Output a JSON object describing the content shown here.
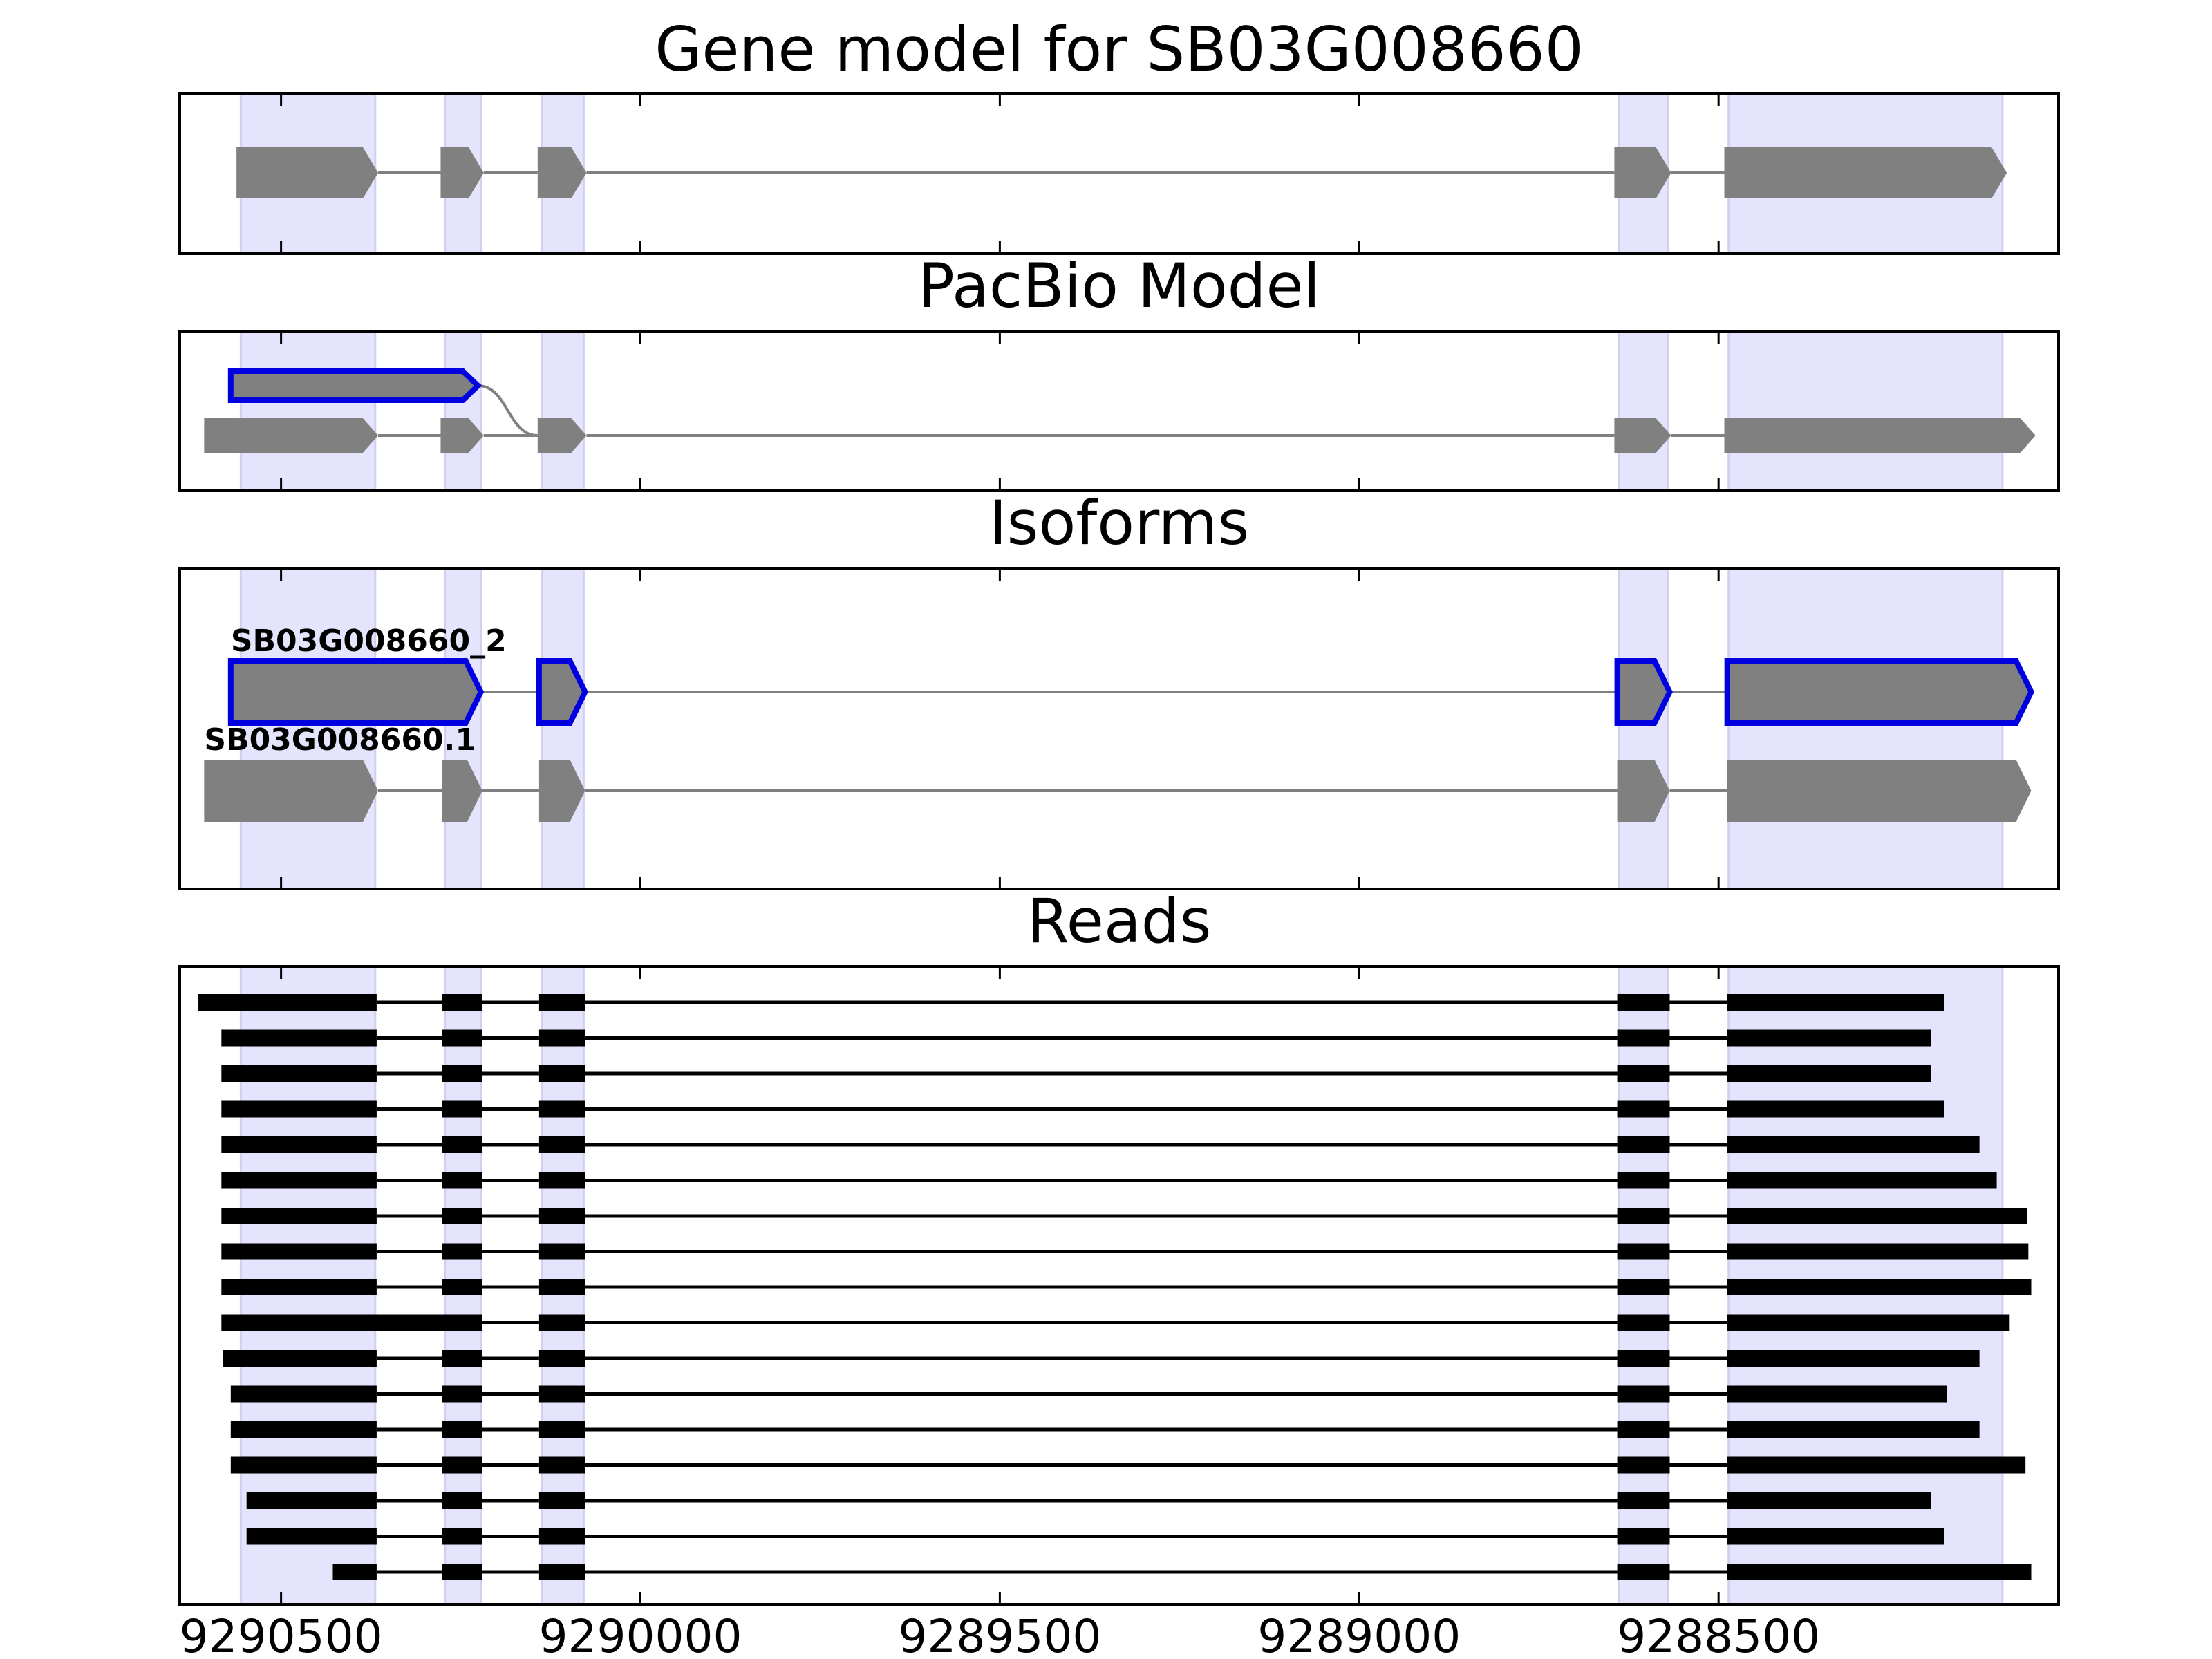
{
  "chart_data": {
    "type": "gene_model",
    "xlim": [
      9290641,
      9288027
    ],
    "xticks": [
      9290500,
      9290000,
      9289500,
      9289000,
      9288500
    ],
    "highlight_regions": [
      [
        9290556,
        9290369
      ],
      [
        9290272,
        9290222
      ],
      [
        9290137,
        9290079
      ],
      [
        9288639,
        9288570
      ],
      [
        9288486,
        9288105
      ]
    ],
    "highlight_color": "#e4e4fc",
    "panels": [
      {
        "title": "Gene model for SB03G008660",
        "tracks": [
          {
            "color": "#808080",
            "exons": [
              [
                9290562,
                9290365
              ],
              [
                9290278,
                9290218
              ],
              [
                9290143,
                9290075
              ],
              [
                9288645,
                9288566
              ],
              [
                9288492,
                9288099
              ]
            ]
          }
        ]
      },
      {
        "title": "PacBio Model",
        "tracks": [
          {
            "color": "#808080",
            "edge_color": "#0000e0",
            "exons": [
              [
                9290570,
                9290226
              ]
            ]
          },
          {
            "color": "#808080",
            "exons": [
              [
                9290607,
                9290365
              ],
              [
                9290278,
                9290218
              ],
              [
                9290143,
                9290075
              ],
              [
                9288645,
                9288566
              ],
              [
                9288492,
                9288059
              ]
            ]
          }
        ]
      },
      {
        "title": "Isoforms",
        "tracks": [
          {
            "name": "SB03G008660_2",
            "color": "#808080",
            "edge_color": "#0000e0",
            "exons": [
              [
                9290570,
                9290222
              ],
              [
                9290141,
                9290077
              ],
              [
                9288641,
                9288568
              ],
              [
                9288488,
                9288065
              ]
            ]
          },
          {
            "name": "SB03G008660.1",
            "color": "#808080",
            "exons": [
              [
                9290607,
                9290365
              ],
              [
                9290276,
                9290220
              ],
              [
                9290141,
                9290077
              ],
              [
                9288641,
                9288568
              ],
              [
                9288488,
                9288065
              ]
            ]
          }
        ]
      },
      {
        "title": "Reads",
        "color": "#000000",
        "reads": [
          [
            [
              9290615,
              9290367
            ],
            [
              9290276,
              9290220
            ],
            [
              9290141,
              9290077
            ],
            [
              9288641,
              9288568
            ],
            [
              9288488,
              9288186
            ]
          ],
          [
            [
              9290583,
              9290367
            ],
            [
              9290276,
              9290220
            ],
            [
              9290141,
              9290077
            ],
            [
              9288641,
              9288568
            ],
            [
              9288488,
              9288204
            ]
          ],
          [
            [
              9290583,
              9290367
            ],
            [
              9290276,
              9290220
            ],
            [
              9290141,
              9290077
            ],
            [
              9288641,
              9288568
            ],
            [
              9288488,
              9288204
            ]
          ],
          [
            [
              9290583,
              9290367
            ],
            [
              9290276,
              9290220
            ],
            [
              9290141,
              9290077
            ],
            [
              9288641,
              9288568
            ],
            [
              9288488,
              9288186
            ]
          ],
          [
            [
              9290583,
              9290367
            ],
            [
              9290276,
              9290220
            ],
            [
              9290141,
              9290077
            ],
            [
              9288641,
              9288568
            ],
            [
              9288488,
              9288137
            ]
          ],
          [
            [
              9290583,
              9290367
            ],
            [
              9290276,
              9290220
            ],
            [
              9290141,
              9290077
            ],
            [
              9288641,
              9288568
            ],
            [
              9288488,
              9288113
            ]
          ],
          [
            [
              9290583,
              9290367
            ],
            [
              9290276,
              9290220
            ],
            [
              9290141,
              9290077
            ],
            [
              9288641,
              9288568
            ],
            [
              9288488,
              9288071
            ]
          ],
          [
            [
              9290583,
              9290367
            ],
            [
              9290276,
              9290220
            ],
            [
              9290141,
              9290077
            ],
            [
              9288641,
              9288568
            ],
            [
              9288488,
              9288069
            ]
          ],
          [
            [
              9290583,
              9290367
            ],
            [
              9290276,
              9290220
            ],
            [
              9290141,
              9290077
            ],
            [
              9288641,
              9288568
            ],
            [
              9288488,
              9288065
            ]
          ],
          [
            [
              9290583,
              9290220
            ],
            [
              9290141,
              9290077
            ],
            [
              9288641,
              9288568
            ],
            [
              9288488,
              9288095
            ]
          ],
          [
            [
              9290581,
              9290367
            ],
            [
              9290276,
              9290220
            ],
            [
              9290141,
              9290077
            ],
            [
              9288641,
              9288568
            ],
            [
              9288488,
              9288137
            ]
          ],
          [
            [
              9290570,
              9290367
            ],
            [
              9290276,
              9290220
            ],
            [
              9290141,
              9290077
            ],
            [
              9288641,
              9288568
            ],
            [
              9288488,
              9288182
            ]
          ],
          [
            [
              9290570,
              9290367
            ],
            [
              9290276,
              9290220
            ],
            [
              9290141,
              9290077
            ],
            [
              9288641,
              9288568
            ],
            [
              9288488,
              9288137
            ]
          ],
          [
            [
              9290570,
              9290367
            ],
            [
              9290276,
              9290220
            ],
            [
              9290141,
              9290077
            ],
            [
              9288641,
              9288568
            ],
            [
              9288488,
              9288073
            ]
          ],
          [
            [
              9290548,
              9290367
            ],
            [
              9290276,
              9290220
            ],
            [
              9290141,
              9290077
            ],
            [
              9288641,
              9288568
            ],
            [
              9288488,
              9288204
            ]
          ],
          [
            [
              9290548,
              9290367
            ],
            [
              9290276,
              9290220
            ],
            [
              9290141,
              9290077
            ],
            [
              9288641,
              9288568
            ],
            [
              9288488,
              9288186
            ]
          ],
          [
            [
              9290428,
              9290367
            ],
            [
              9290276,
              9290220
            ],
            [
              9290141,
              9290077
            ],
            [
              9288641,
              9288568
            ],
            [
              9288488,
              9288065
            ]
          ]
        ]
      }
    ]
  }
}
